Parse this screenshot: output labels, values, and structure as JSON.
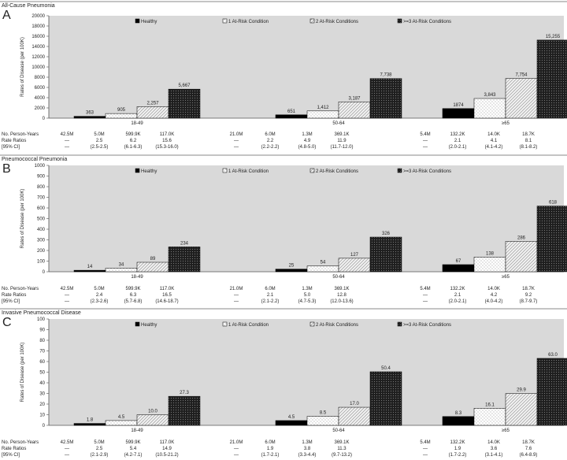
{
  "colors": {
    "plot_bg": "#d9d9d9",
    "bar_healthy": "#000000",
    "bar_1": "#ffffff",
    "bar_2": "#f0f0f0",
    "bar_3": "#2a2a2a",
    "rule": "#888888",
    "text": "#222222"
  },
  "table_row_labels": [
    "No. Person-Years",
    "Rate Ratios",
    "[95% CI]"
  ],
  "chart_data": [
    {
      "type": "bar",
      "panel_letter": "A",
      "title": "All-Cause Pneumonia",
      "ylabel": "Rates of Disease (per 100K)",
      "ylim": [
        0,
        20000
      ],
      "yticks": [
        "0",
        "2000",
        "4000",
        "6000",
        "8000",
        "10000",
        "12000",
        "14000",
        "16000",
        "18000",
        "20000"
      ],
      "grid": false,
      "legend_position": "top",
      "categories": [
        "18-49",
        "50-64",
        "≥65"
      ],
      "series": [
        {
          "name": "Healthy",
          "values": [
            363,
            651,
            1874
          ],
          "labels": [
            "363",
            "651",
            "1874"
          ]
        },
        {
          "name": "1 At-Risk Condition",
          "values": [
            905,
            1412,
            3843
          ],
          "labels": [
            "905",
            "1,412",
            "3,843"
          ]
        },
        {
          "name": "2 At-Risk Conditions",
          "values": [
            2257,
            3187,
            7754
          ],
          "labels": [
            "2,257",
            "3,187",
            "7,754"
          ]
        },
        {
          "name": ">=3 At-Risk Conditions",
          "values": [
            5667,
            7738,
            15255
          ],
          "labels": [
            "5,667",
            "7,738",
            "15,255"
          ]
        }
      ],
      "table": {
        "person_years": [
          [
            "42.5M",
            "5.0M",
            "599.9K",
            "117.0K"
          ],
          [
            "21.0M",
            "6.0M",
            "1.3M",
            "369.1K"
          ],
          [
            "5.4M",
            "132.2K",
            "14.0K",
            "18.7K"
          ]
        ],
        "rate_ratios": [
          [
            "—",
            "2.5",
            "6.2",
            "15.6"
          ],
          [
            "—",
            "2.2",
            "4.9",
            "11.9"
          ],
          [
            "—",
            "2.1",
            "4.1",
            "8.1"
          ]
        ],
        "ci": [
          [
            "—",
            "(2.5-2.5)",
            "(6.1-6.3)",
            "(15.3-16.0)"
          ],
          [
            "—",
            "(2.2-2.2)",
            "(4.8-5.0)",
            "(11.7-12.0)"
          ],
          [
            "—",
            "(2.0-2.1)",
            "(4.1-4.2)",
            "(8.1-8.2)"
          ]
        ]
      }
    },
    {
      "type": "bar",
      "panel_letter": "B",
      "title": "Pneumococcal Pneumonia",
      "ylabel": "Rates of Disease (per 100K)",
      "ylim": [
        0,
        1000
      ],
      "yticks": [
        "0",
        "100",
        "200",
        "300",
        "400",
        "500",
        "600",
        "700",
        "800",
        "900",
        "1000"
      ],
      "grid": false,
      "legend_position": "top",
      "categories": [
        "18-49",
        "50-64",
        "≥65"
      ],
      "series": [
        {
          "name": "Healthy",
          "values": [
            14,
            25,
            67
          ],
          "labels": [
            "14",
            "25",
            "67"
          ]
        },
        {
          "name": "1 At-Risk Condition",
          "values": [
            34,
            54,
            138
          ],
          "labels": [
            "34",
            "54",
            "138"
          ]
        },
        {
          "name": "2 At-Risk Conditions",
          "values": [
            89,
            127,
            286
          ],
          "labels": [
            "89",
            "127",
            "286"
          ]
        },
        {
          "name": ">=3 At-Risk Conditions",
          "values": [
            234,
            326,
            618
          ],
          "labels": [
            "234",
            "326",
            "618"
          ]
        }
      ],
      "table": {
        "person_years": [
          [
            "42.5M",
            "5.0M",
            "599.9K",
            "117.0K"
          ],
          [
            "21.0M",
            "6.0M",
            "1.3M",
            "369.1K"
          ],
          [
            "5.4M",
            "132.2K",
            "14.0K",
            "18.7K"
          ]
        ],
        "rate_ratios": [
          [
            "—",
            "2.4",
            "6.3",
            "16.5"
          ],
          [
            "—",
            "2.1",
            "5.0",
            "12.8"
          ],
          [
            "—",
            "2.1",
            "4.2",
            "9.2"
          ]
        ],
        "ci": [
          [
            "—",
            "(2.3-2.6)",
            "(5.7-6.8)",
            "(14.6-18.7)"
          ],
          [
            "—",
            "(2.1-2.2)",
            "(4.7-5.3)",
            "(12.0-13.6)"
          ],
          [
            "—",
            "(2.0-2.1)",
            "(4.0-4.2)",
            "(8.7-9.7)"
          ]
        ]
      }
    },
    {
      "type": "bar",
      "panel_letter": "C",
      "title": "Invasive Pneumococcal Disease",
      "ylabel": "Rates of Disease (per 100K)",
      "ylim": [
        0,
        100
      ],
      "yticks": [
        "0",
        "10",
        "20",
        "30",
        "40",
        "50",
        "60",
        "70",
        "80",
        "90",
        "100"
      ],
      "grid": false,
      "legend_position": "top",
      "categories": [
        "18-49",
        "50-64",
        "≥65"
      ],
      "series": [
        {
          "name": "Healthy",
          "values": [
            1.8,
            4.5,
            8.3
          ],
          "labels": [
            "1.8",
            "4.5",
            "8.3"
          ]
        },
        {
          "name": "1 At-Risk Condition",
          "values": [
            4.5,
            8.5,
            16.1
          ],
          "labels": [
            "4.5",
            "8.5",
            "16.1"
          ]
        },
        {
          "name": "2 At-Risk Conditions",
          "values": [
            10.0,
            17.0,
            29.9
          ],
          "labels": [
            "10.0",
            "17.0",
            "29.9"
          ]
        },
        {
          "name": ">=3 At-Risk Conditions",
          "values": [
            27.3,
            50.4,
            63.0
          ],
          "labels": [
            "27.3",
            "50.4",
            "63.0"
          ]
        }
      ],
      "table": {
        "person_years": [
          [
            "42.5M",
            "5.0M",
            "599.9K",
            "117.0K"
          ],
          [
            "21.0M",
            "6.0M",
            "1.3M",
            "369.1K"
          ],
          [
            "5.4M",
            "132.2K",
            "14.0K",
            "18.7K"
          ]
        ],
        "rate_ratios": [
          [
            "—",
            "2.5",
            "5.4",
            "14.9"
          ],
          [
            "—",
            "1.9",
            "3.8",
            "11.3"
          ],
          [
            "—",
            "1.9",
            "3.6",
            "7.6"
          ]
        ],
        "ci": [
          [
            "—",
            "(2.1-2.9)",
            "(4.2-7.1)",
            "(10.5-21.2)"
          ],
          [
            "—",
            "(1.7-2.1)",
            "(3.3-4.4)",
            "(9.7-13.2)"
          ],
          [
            "—",
            "(1.7-2.2)",
            "(3.1-4.1)",
            "(6.4-8.9)"
          ]
        ]
      }
    }
  ]
}
